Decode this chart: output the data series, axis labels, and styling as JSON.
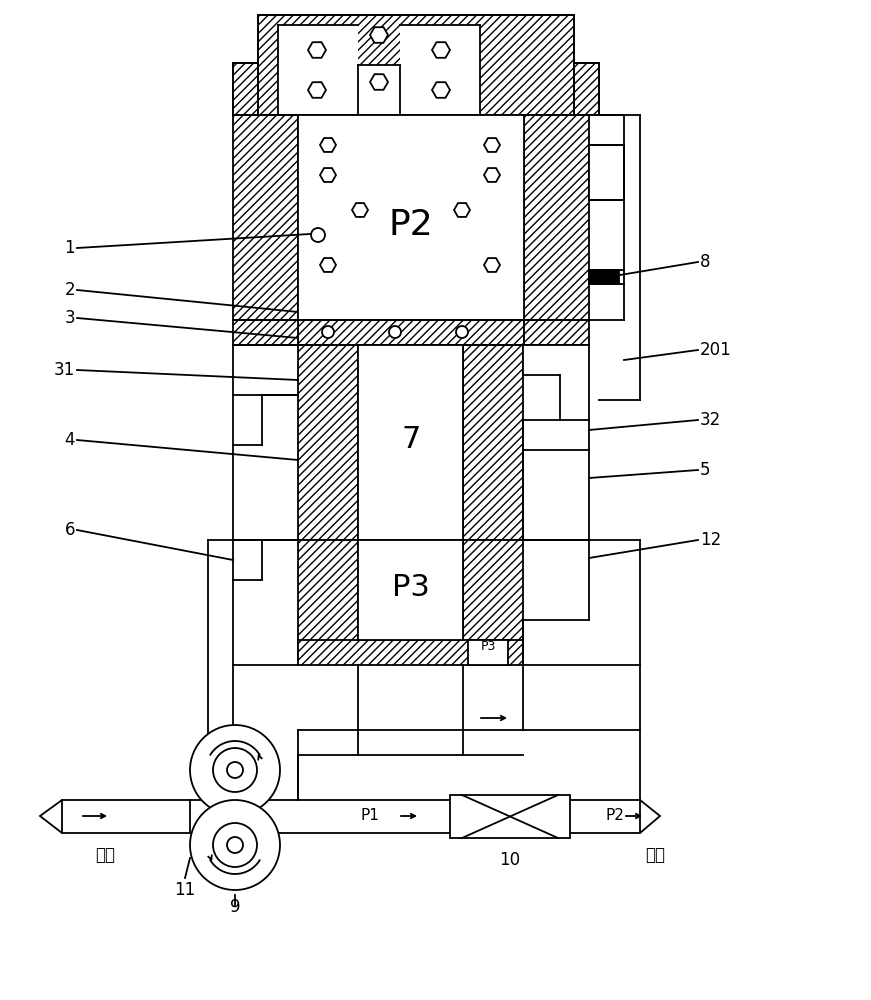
{
  "bg_color": "#ffffff",
  "lw": 1.3,
  "hatch": "////",
  "labels": {
    "1": "1",
    "2": "2",
    "3": "3",
    "4": "4",
    "5": "5",
    "6": "6",
    "7": "7",
    "8": "8",
    "9": "9",
    "10": "10",
    "11": "11",
    "12": "12",
    "31": "31",
    "32": "32",
    "201": "201",
    "P1": "P1",
    "P2": "P2",
    "P3": "P3",
    "P2_chamber": "P2",
    "P3_chamber": "P3",
    "valve_body": "7",
    "P3_small": "P3",
    "inlet": "进口",
    "outlet": "出口"
  }
}
